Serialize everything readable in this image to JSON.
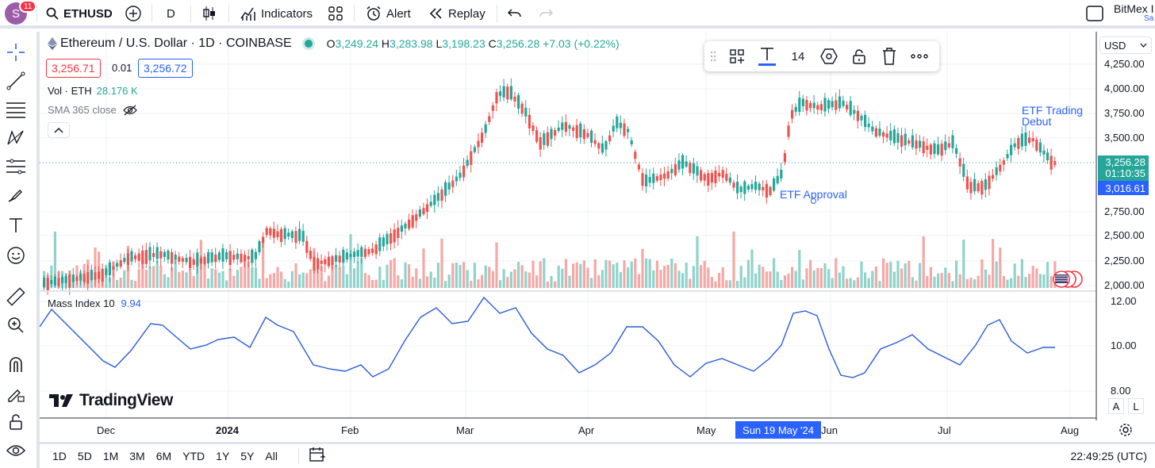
{
  "header": {
    "avatar_letter": "S",
    "notifications": "11",
    "symbol": "ETHUSD",
    "interval": "D",
    "indicators_label": "Indicators",
    "alert_label": "Alert",
    "replay_label": "Replay",
    "account_name": "BitMex I",
    "account_sub": "Sa"
  },
  "legend": {
    "title": "Ethereum / U.S. Dollar · 1D · COINBASE",
    "o_label": "O",
    "o_val": "3,249.24",
    "h_label": "H",
    "h_val": "3,283.98",
    "l_label": "L",
    "l_val": "3,198.23",
    "c_label": "C",
    "c_val": "3,256.28",
    "change": "+7.03 (+0.22%)",
    "bid": "3,256.71",
    "spread": "0.01",
    "ask": "3,256.72",
    "vol_label": "Vol · ETH",
    "vol_val": "28.176 K",
    "sma_label": "SMA 365 close"
  },
  "mass_index": {
    "label": "Mass Index 10",
    "value": "9.94"
  },
  "annotations": {
    "etf_approval": "ETF Approval",
    "etf_trading": "ETF Trading",
    "etf_debut": "Debut"
  },
  "float_toolbar": {
    "font_size": "14"
  },
  "price_axis": {
    "currency": "USD",
    "ticks": [
      "4,250.00",
      "4,000.00",
      "3,750.00",
      "3,500.00",
      "2,750.00",
      "2,500.00",
      "2,250.00",
      "2,000.00"
    ],
    "last_price": "3,256.28",
    "countdown": "01:10:35",
    "sma_price": "3,016.61"
  },
  "mi_axis": {
    "ticks": [
      "12.00",
      "10.00",
      "8.00"
    ]
  },
  "time_axis": {
    "labels": [
      "Dec",
      "2024",
      "Feb",
      "Mar",
      "Apr",
      "May",
      "Jun",
      "Jul",
      "Aug"
    ],
    "crosshair": "Sun 19 May '24"
  },
  "bottom": {
    "ranges": [
      "1D",
      "5D",
      "1M",
      "3M",
      "6M",
      "YTD",
      "1Y",
      "5Y",
      "All"
    ],
    "clock": "22:49:25 (UTC)",
    "a_label": "A",
    "l_label": "L"
  },
  "brand": {
    "logo_text": "TradingView"
  },
  "colors": {
    "up": "#26a69a",
    "down": "#ef5350",
    "accent": "#2962ff",
    "mi_line": "#2a5bd7"
  }
}
